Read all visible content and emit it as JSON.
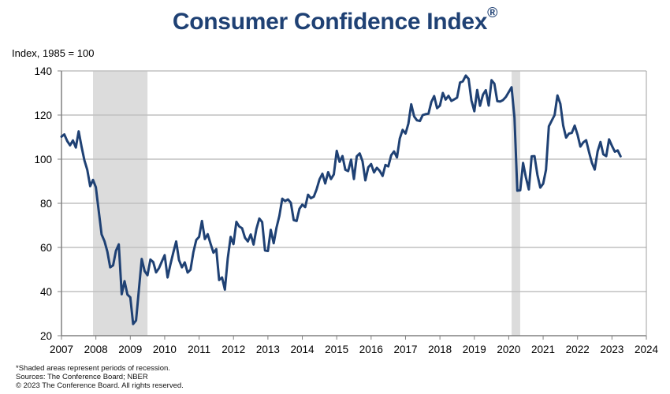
{
  "title": "Consumer Confidence Index",
  "title_mark": "®",
  "footnotes": [
    "*Shaded areas represent periods of recession.",
    "Sources: The Conference Board; NBER",
    "© 2023 The Conference Board. All rights reserved."
  ],
  "chart_data": {
    "type": "line",
    "title": "Consumer Confidence Index®",
    "xlabel": "",
    "ylabel": "Index, 1985 = 100",
    "xlim": [
      2007,
      2024
    ],
    "ylim": [
      20,
      140
    ],
    "x_ticks": [
      "2007",
      "2008",
      "2009",
      "2010",
      "2011",
      "2012",
      "2013",
      "2014",
      "2015",
      "2016",
      "2017",
      "2018",
      "2019",
      "2020",
      "2021",
      "2022",
      "2023",
      "2024"
    ],
    "y_ticks": [
      20,
      40,
      60,
      80,
      100,
      120,
      140
    ],
    "grid": "horizontal",
    "legend": "none",
    "recessions": [
      {
        "start": "2007-12",
        "end": "2009-06"
      },
      {
        "start": "2020-02",
        "end": "2020-04"
      }
    ],
    "colors": {
      "line": "#1f4174",
      "recession": "#dcdcdc",
      "grid": "#c0c0c0",
      "title": "#1f4174"
    },
    "series": [
      {
        "name": "Consumer Confidence Index",
        "start": "2007-01",
        "frequency": "monthly",
        "values": [
          110.2,
          111.2,
          108.2,
          106.3,
          108.5,
          105.3,
          112.6,
          105.6,
          99.5,
          95.2,
          87.8,
          90.6,
          87.3,
          76.4,
          65.9,
          62.8,
          58.1,
          51.0,
          51.9,
          58.5,
          61.4,
          38.8,
          44.7,
          38.6,
          37.4,
          25.3,
          26.9,
          40.8,
          54.8,
          49.3,
          47.4,
          54.5,
          53.4,
          48.7,
          50.6,
          53.6,
          56.5,
          46.4,
          52.3,
          57.7,
          62.7,
          54.3,
          51.0,
          53.2,
          48.6,
          49.9,
          57.8,
          63.4,
          64.8,
          72.0,
          63.8,
          66.0,
          61.7,
          57.6,
          59.2,
          45.2,
          46.4,
          40.9,
          55.2,
          64.8,
          61.5,
          71.6,
          69.5,
          68.7,
          64.4,
          62.7,
          65.9,
          61.3,
          68.4,
          73.1,
          71.5,
          58.6,
          58.4,
          68.0,
          61.9,
          69.0,
          74.3,
          82.1,
          81.0,
          81.8,
          80.2,
          72.4,
          72.0,
          77.5,
          79.4,
          78.3,
          83.9,
          82.3,
          83.0,
          86.4,
          90.9,
          93.4,
          89.0,
          94.1,
          91.0,
          93.1,
          103.8,
          98.8,
          101.4,
          95.2,
          94.6,
          99.8,
          91.0,
          101.3,
          102.6,
          99.1,
          90.4,
          96.3,
          97.8,
          94.0,
          96.1,
          94.7,
          92.4,
          97.4,
          96.7,
          101.8,
          103.5,
          100.8,
          109.4,
          113.3,
          111.6,
          116.1,
          124.9,
          119.4,
          117.6,
          117.3,
          120.0,
          120.4,
          120.6,
          125.9,
          128.6,
          123.1,
          124.3,
          130.0,
          127.0,
          128.7,
          126.4,
          127.1,
          127.9,
          134.7,
          135.3,
          137.9,
          136.4,
          126.6,
          121.7,
          131.4,
          124.2,
          129.2,
          131.3,
          124.3,
          135.8,
          134.2,
          126.3,
          126.1,
          126.8,
          128.2,
          130.4,
          132.6,
          118.8,
          85.7,
          85.9,
          98.3,
          91.7,
          86.3,
          101.3,
          101.4,
          92.9,
          87.1,
          88.9,
          95.2,
          114.9,
          117.5,
          120.0,
          128.9,
          125.1,
          115.2,
          109.8,
          111.6,
          111.9,
          115.2,
          111.1,
          105.7,
          107.6,
          108.6,
          103.2,
          98.4,
          95.3,
          103.6,
          107.8,
          102.2,
          101.4,
          109.0,
          106.0,
          103.4,
          104.0,
          101.3
        ]
      }
    ]
  }
}
